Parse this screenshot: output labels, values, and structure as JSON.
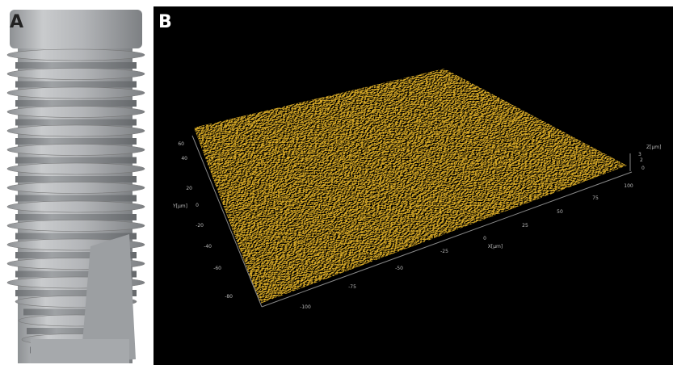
{
  "panels": [
    {
      "label": "A"
    },
    {
      "label": "B",
      "y_axis": {
        "label": "Y[μm]",
        "ticks": [
          "60",
          "40",
          "20",
          "0",
          "-20",
          "-40",
          "-60",
          "-80"
        ]
      },
      "x_axis": {
        "label": "X[μm]",
        "ticks": [
          "-100",
          "-75",
          "-50",
          "-25",
          "0",
          "25",
          "50",
          "75",
          "100"
        ]
      },
      "z_axis": {
        "label": "Z[μm]",
        "ticks": [
          "3",
          "2",
          "0"
        ]
      }
    }
  ]
}
